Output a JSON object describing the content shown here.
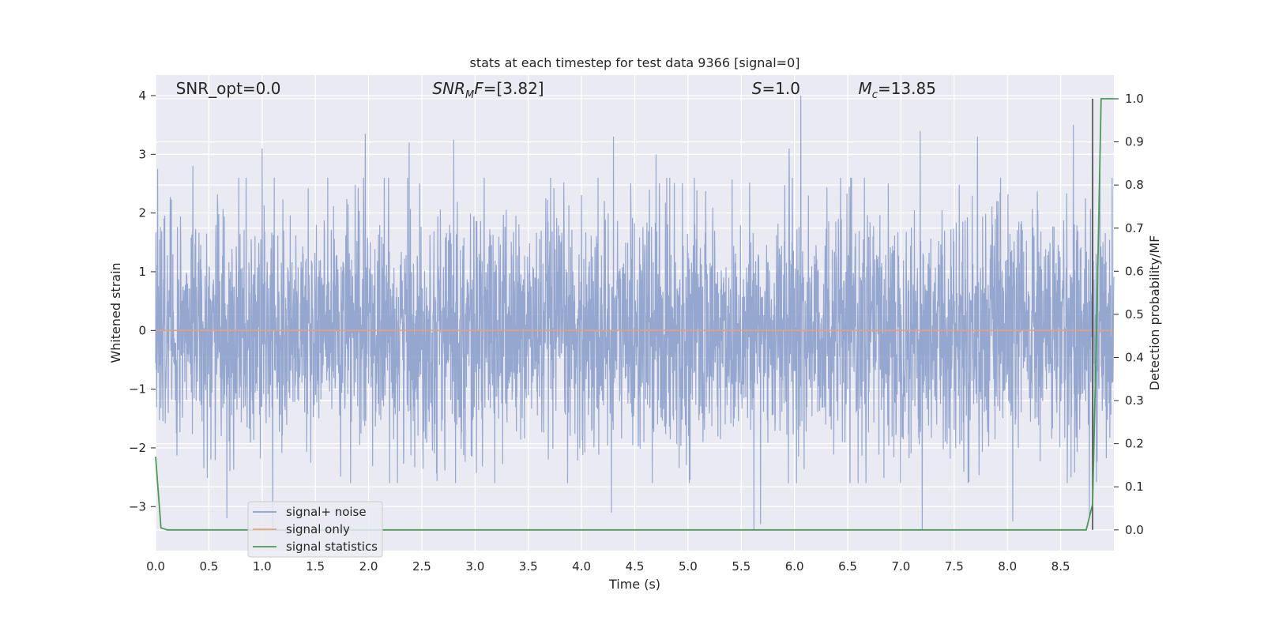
{
  "chart_data": {
    "type": "line",
    "title": "stats at each timestep for test data 9366 [signal=0]",
    "xlabel": "Time (s)",
    "ylabel": "Whitened strain",
    "ylabel_right": "Detection probability/MF",
    "xlim": [
      0.0,
      9.0
    ],
    "ylim": [
      -3.75,
      4.35
    ],
    "ylim_right": [
      -0.048,
      1.055
    ],
    "x_ticks": [
      0.0,
      0.5,
      1.0,
      1.5,
      2.0,
      2.5,
      3.0,
      3.5,
      4.0,
      4.5,
      5.0,
      5.5,
      6.0,
      6.5,
      7.0,
      7.5,
      8.0,
      8.5
    ],
    "x_tick_labels": [
      "0.0",
      "0.5",
      "1.0",
      "1.5",
      "2.0",
      "2.5",
      "3.0",
      "3.5",
      "4.0",
      "4.5",
      "5.0",
      "5.5",
      "6.0",
      "6.5",
      "7.0",
      "7.5",
      "8.0",
      "8.5"
    ],
    "y_ticks": [
      -3,
      -2,
      -1,
      0,
      1,
      2,
      3,
      4
    ],
    "y_tick_labels": [
      "−3",
      "−2",
      "−1",
      "0",
      "1",
      "2",
      "3",
      "4"
    ],
    "y_right_ticks": [
      0.0,
      0.1,
      0.2,
      0.3,
      0.4,
      0.5,
      0.6,
      0.7,
      0.8,
      0.9,
      1.0
    ],
    "y_right_tick_labels": [
      "0.0",
      "0.1",
      "0.2",
      "0.3",
      "0.4",
      "0.5",
      "0.6",
      "0.7",
      "0.8",
      "0.9",
      "1.0"
    ],
    "grid": true,
    "legend_position": "lower-left",
    "annotations": {
      "snr_opt": "SNR_opt=0.0",
      "snr_mf_main": "SNR",
      "snr_mf_sub": "M",
      "snr_mf_rest": "F",
      "snr_mf_value": "=[3.82]",
      "s_main": "S",
      "s_value": "=1.0",
      "mc_main": "M",
      "mc_sub": "c",
      "mc_value": "=13.85"
    },
    "series": [
      {
        "name": "signal+ noise",
        "color": "#8da0cb",
        "description": "whitened strain noise, dense oscillation roughly between -2.5 and 2.5 with peaks up to about 4.0 and troughs near -3.4",
        "sample_rate": 2048,
        "amplitude_envelope": 1.0,
        "peaks": [
          [
            0.02,
            2.75
          ],
          [
            0.35,
            2.8
          ],
          [
            1.0,
            3.1
          ],
          [
            1.97,
            3.35
          ],
          [
            2.38,
            3.2
          ],
          [
            2.8,
            3.25
          ],
          [
            4.3,
            3.3
          ],
          [
            4.7,
            3.0
          ],
          [
            6.06,
            4.0
          ],
          [
            5.95,
            3.1
          ],
          [
            7.18,
            3.4
          ],
          [
            7.72,
            3.3
          ],
          [
            8.62,
            3.5
          ],
          [
            8.8,
            3.2
          ],
          [
            8.87,
            3.0
          ]
        ],
        "troughs": [
          [
            0.67,
            -3.2
          ],
          [
            1.1,
            -3.35
          ],
          [
            4.28,
            -3.1
          ],
          [
            5.62,
            -3.4
          ],
          [
            5.68,
            -3.3
          ],
          [
            7.2,
            -3.4
          ],
          [
            8.05,
            -3.25
          ],
          [
            8.77,
            -3.15
          ]
        ]
      },
      {
        "name": "signal only",
        "color": "#e5a07e",
        "x": [
          0.0,
          9.0
        ],
        "y": [
          0.0,
          0.0
        ]
      },
      {
        "name": "signal statistics",
        "color": "#4c9a5a",
        "axis": "right",
        "x": [
          0.0,
          0.05,
          0.11,
          8.74,
          8.8,
          8.84,
          8.88,
          9.0
        ],
        "y": [
          0.17,
          0.005,
          0.0,
          0.0,
          0.06,
          0.5,
          1.0,
          1.0
        ]
      }
    ],
    "marker_line": {
      "x": 8.8,
      "y_range": [
        0.0,
        1.0
      ],
      "color": "#404040"
    }
  }
}
